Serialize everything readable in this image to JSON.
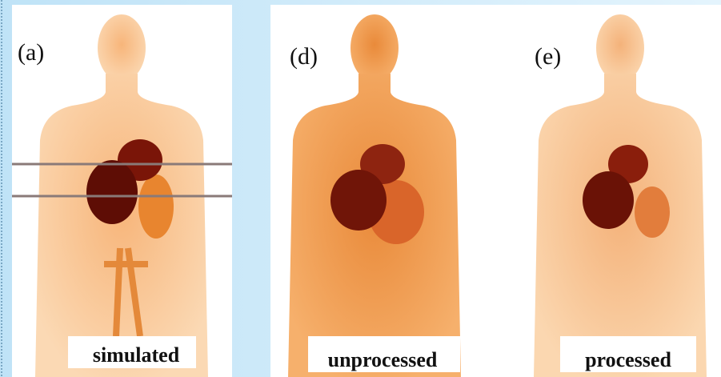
{
  "panels": [
    {
      "label": "(a)",
      "caption": "simulated"
    },
    {
      "label": "(d)",
      "caption": "unprocessed"
    },
    {
      "label": "(e)",
      "caption": "processed"
    }
  ]
}
